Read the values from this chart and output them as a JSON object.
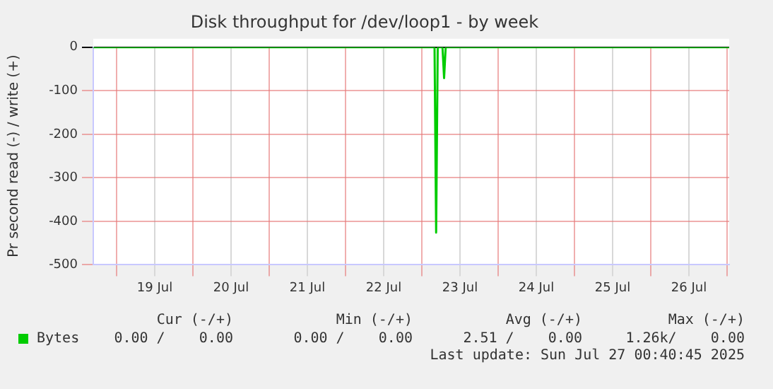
{
  "chart_data": {
    "type": "line",
    "title": "Disk throughput for /dev/loop1 - by week",
    "ylabel": "Pr second read (-) / write (+)",
    "x": [
      "2025-07-18T16:40",
      "2025-07-23T04:00",
      "2025-07-23T04:30",
      "2025-07-23T05:00",
      "2025-07-23T06:30",
      "2025-07-23T07:00",
      "2025-07-23T07:30",
      "2025-07-27T00:40"
    ],
    "series": [
      {
        "name": "Bytes",
        "color": "#00cc00",
        "values": [
          0,
          0,
          -426,
          0,
          0,
          -71,
          0,
          0
        ]
      }
    ],
    "xlim": [
      "2025-07-18T16:40",
      "2025-07-27T00:40"
    ],
    "xticks": [
      {
        "value": "2025-07-19T00:00",
        "label": null
      },
      {
        "value": "2025-07-19T12:00",
        "label": "19 Jul"
      },
      {
        "value": "2025-07-20T00:00",
        "label": null
      },
      {
        "value": "2025-07-20T12:00",
        "label": "20 Jul"
      },
      {
        "value": "2025-07-21T00:00",
        "label": null
      },
      {
        "value": "2025-07-21T12:00",
        "label": "21 Jul"
      },
      {
        "value": "2025-07-22T00:00",
        "label": null
      },
      {
        "value": "2025-07-22T12:00",
        "label": "22 Jul"
      },
      {
        "value": "2025-07-23T00:00",
        "label": null
      },
      {
        "value": "2025-07-23T12:00",
        "label": "23 Jul"
      },
      {
        "value": "2025-07-24T00:00",
        "label": null
      },
      {
        "value": "2025-07-24T12:00",
        "label": "24 Jul"
      },
      {
        "value": "2025-07-25T00:00",
        "label": null
      },
      {
        "value": "2025-07-25T12:00",
        "label": "25 Jul"
      },
      {
        "value": "2025-07-26T00:00",
        "label": null
      },
      {
        "value": "2025-07-26T12:00",
        "label": "26 Jul"
      },
      {
        "value": "2025-07-27T00:00",
        "label": null
      }
    ],
    "ylim": [
      -500,
      0
    ],
    "yticks": [
      -500,
      -400,
      -300,
      -200,
      -100,
      0
    ],
    "grid": true,
    "legend": "bottom left",
    "marker": "none",
    "line_style": "solid",
    "annotations": [
      "Cur (-/+)",
      "Min (-/+)",
      "Avg (-/+)",
      "Max (-/+)",
      "0.00 /    0.00",
      "0.00 /    0.00",
      "2.51 /    0.00",
      "1.26k/    0.00",
      "Last update: Sun Jul 27 00:40:45 2025"
    ]
  }
}
